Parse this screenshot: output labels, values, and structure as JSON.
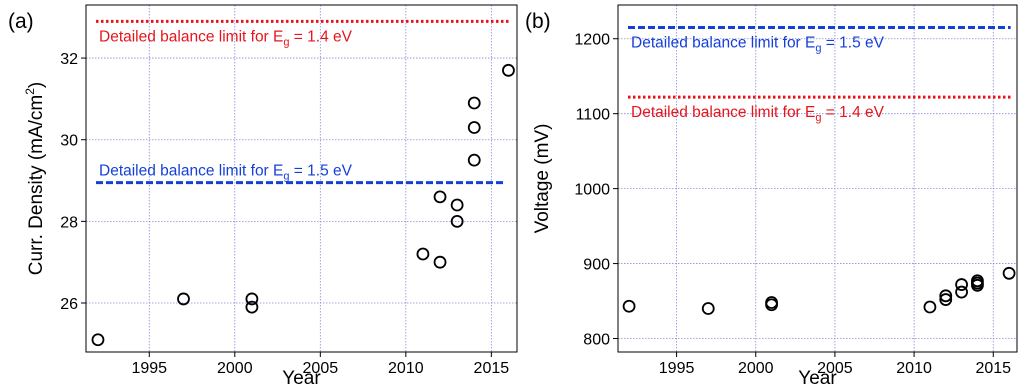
{
  "colors": {
    "red_limit": "#e8141a",
    "blue_limit": "#1540d8",
    "grid": "#8a8ad8",
    "marker": "#000000"
  },
  "chart_data": [
    {
      "panel_label": "(a)",
      "type": "scatter",
      "xlabel": "Year",
      "ylabel_main": "Curr. Density (mA/cm",
      "ylabel_sup": "2",
      "ylabel_end": ")",
      "xlim": [
        1991.3,
        2016.5
      ],
      "ylim": [
        24.8,
        33.3
      ],
      "xticks": [
        1995,
        2000,
        2005,
        2010,
        2015
      ],
      "yticks": [
        26,
        28,
        30,
        32
      ],
      "grid": true,
      "points": [
        {
          "x": 1992,
          "y": 25.1
        },
        {
          "x": 1997,
          "y": 26.1
        },
        {
          "x": 2001,
          "y": 26.1
        },
        {
          "x": 2001,
          "y": 25.9
        },
        {
          "x": 2011,
          "y": 27.2
        },
        {
          "x": 2012,
          "y": 27.0
        },
        {
          "x": 2012,
          "y": 28.6
        },
        {
          "x": 2013,
          "y": 28.4
        },
        {
          "x": 2013,
          "y": 28.0
        },
        {
          "x": 2014,
          "y": 29.5
        },
        {
          "x": 2014,
          "y": 30.3
        },
        {
          "x": 2014,
          "y": 30.9
        },
        {
          "x": 2016,
          "y": 31.7
        }
      ],
      "limit_lines": [
        {
          "y": 32.9,
          "x_end": 2016.1,
          "style": "dotted",
          "color": "#e8141a",
          "label_main": "Detailed balance limit for E",
          "label_sub": "g",
          "label_end": " = 1.4 eV",
          "label_pos": "below"
        },
        {
          "y": 28.95,
          "x_end": 2015.7,
          "style": "dashed",
          "color": "#1540d8",
          "label_main": "Detailed balance limit for E",
          "label_sub": "g",
          "label_end": " = 1.5 eV",
          "label_pos": "above"
        }
      ]
    },
    {
      "panel_label": "(b)",
      "type": "scatter",
      "xlabel": "Year",
      "ylabel_main": "Voltage (mV)",
      "ylabel_sup": "",
      "ylabel_end": "",
      "xlim": [
        1991.3,
        2016.5
      ],
      "ylim": [
        782,
        1245
      ],
      "xticks": [
        1995,
        2000,
        2005,
        2010,
        2015
      ],
      "yticks": [
        800,
        900,
        1000,
        1100,
        1200
      ],
      "grid": true,
      "points": [
        {
          "x": 1992,
          "y": 843
        },
        {
          "x": 1997,
          "y": 840
        },
        {
          "x": 2001,
          "y": 848
        },
        {
          "x": 2001,
          "y": 845
        },
        {
          "x": 2011,
          "y": 842
        },
        {
          "x": 2012,
          "y": 852
        },
        {
          "x": 2012,
          "y": 857
        },
        {
          "x": 2013,
          "y": 862
        },
        {
          "x": 2013,
          "y": 872
        },
        {
          "x": 2014,
          "y": 871
        },
        {
          "x": 2014,
          "y": 874
        },
        {
          "x": 2014,
          "y": 877
        },
        {
          "x": 2016,
          "y": 887
        }
      ],
      "limit_lines": [
        {
          "y": 1215,
          "x_end": 2016.1,
          "style": "dashed",
          "color": "#1540d8",
          "label_main": "Detailed balance limit for E",
          "label_sub": "g",
          "label_end": " = 1.5 eV",
          "label_pos": "below"
        },
        {
          "y": 1122,
          "x_end": 2016.1,
          "style": "dotted",
          "color": "#e8141a",
          "label_main": "Detailed balance limit for E",
          "label_sub": "g",
          "label_end": " = 1.4 eV",
          "label_pos": "below"
        }
      ]
    }
  ]
}
